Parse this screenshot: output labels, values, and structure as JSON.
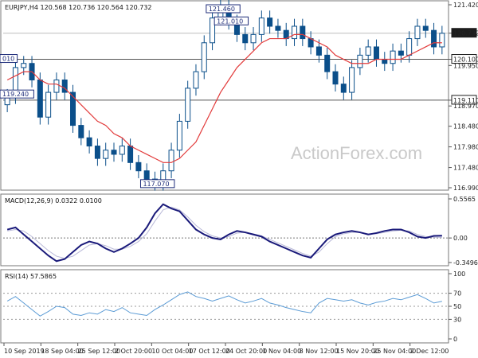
{
  "colors": {
    "candle": "#0b4f8a",
    "ma": "#e23b3b",
    "macd_main": "#1a1a7a",
    "macd_signal": "#b9b9d8",
    "rsi": "#5b9bd5",
    "level_line": "#555555",
    "grid": "#d8d8d8",
    "tag_bg_dark": "#1f2d7a",
    "tag_bg_light": "#ffffff"
  },
  "chart_data": [
    {
      "type": "candlestick",
      "title": "EURJPY,H4  120.568 120.736 120.564 120.732",
      "watermark": "ActionForex.com",
      "ylim": [
        116.99,
        121.42
      ],
      "y_ticks": [
        "121.420",
        "120.732",
        "120.100",
        "119.950",
        "119.110",
        "118.970",
        "118.480",
        "117.980",
        "117.480",
        "116.990"
      ],
      "x_ticks": [
        "10 Sep 2019",
        "18 Sep 04:00",
        "25 Sep 12:00",
        "2 Oct 20:00",
        "10 Oct 04:00",
        "17 Oct 12:00",
        "24 Oct 20:00",
        "1 Nov 04:00",
        "8 Nov 12:00",
        "15 Nov 20:00",
        "25 Nov 04:00",
        "2 Dec 12:00"
      ],
      "current_price": "120.732",
      "levels": [
        {
          "label": "120.100",
          "value": 120.1
        },
        {
          "label": "119.110",
          "value": 119.11
        }
      ],
      "annotations": [
        {
          "label": "121.460",
          "value": 121.46
        },
        {
          "label": "121.010",
          "value": 121.01
        },
        {
          "label": "119.240",
          "value": 119.24
        },
        {
          "label": "117.070",
          "value": 117.07
        },
        {
          "label": "010",
          "value": 120.1
        }
      ],
      "series": [
        {
          "name": "close",
          "values": [
            119.2,
            119.9,
            120.0,
            119.6,
            118.7,
            119.3,
            119.6,
            119.3,
            118.5,
            118.2,
            118.0,
            117.7,
            117.9,
            117.8,
            118.0,
            117.6,
            117.4,
            117.2,
            117.1,
            117.4,
            117.9,
            118.6,
            119.4,
            119.8,
            120.5,
            121.1,
            121.4,
            121.0,
            120.7,
            120.5,
            120.7,
            121.1,
            120.9,
            120.8,
            120.6,
            120.9,
            120.6,
            120.4,
            120.2,
            119.8,
            119.5,
            119.3,
            119.9,
            120.2,
            120.4,
            120.1,
            120.0,
            120.3,
            120.2,
            120.6,
            120.9,
            120.8,
            120.4,
            120.73
          ]
        },
        {
          "name": "ma",
          "values": [
            119.6,
            119.7,
            119.8,
            119.8,
            119.6,
            119.5,
            119.5,
            119.4,
            119.2,
            119.0,
            118.8,
            118.6,
            118.5,
            118.3,
            118.2,
            118.0,
            117.9,
            117.8,
            117.7,
            117.6,
            117.6,
            117.7,
            117.9,
            118.1,
            118.5,
            118.9,
            119.3,
            119.6,
            119.9,
            120.1,
            120.3,
            120.5,
            120.6,
            120.6,
            120.6,
            120.7,
            120.7,
            120.6,
            120.5,
            120.4,
            120.2,
            120.1,
            120.0,
            120.0,
            120.0,
            120.1,
            120.1,
            120.1,
            120.1,
            120.2,
            120.3,
            120.4,
            120.5,
            120.5
          ]
        }
      ]
    },
    {
      "type": "line",
      "title": "MACD(12,26,9) 0.0322 0.0100",
      "ylim": [
        -0.3496,
        0.5565
      ],
      "y_ticks": [
        "0.5565",
        "0.00",
        "-0.3496"
      ],
      "series": [
        {
          "name": "main",
          "values": [
            0.12,
            0.15,
            0.05,
            -0.05,
            -0.15,
            -0.25,
            -0.33,
            -0.3,
            -0.2,
            -0.1,
            -0.05,
            -0.08,
            -0.15,
            -0.2,
            -0.15,
            -0.08,
            0.0,
            0.15,
            0.35,
            0.48,
            0.42,
            0.38,
            0.25,
            0.12,
            0.05,
            0.0,
            -0.02,
            0.05,
            0.1,
            0.08,
            0.05,
            0.02,
            -0.05,
            -0.1,
            -0.15,
            -0.2,
            -0.25,
            -0.28,
            -0.15,
            -0.02,
            0.05,
            0.08,
            0.1,
            0.08,
            0.05,
            0.07,
            0.1,
            0.12,
            0.12,
            0.08,
            0.02,
            0.0,
            0.03,
            0.0322
          ]
        },
        {
          "name": "signal",
          "values": [
            0.1,
            0.12,
            0.1,
            0.02,
            -0.08,
            -0.18,
            -0.26,
            -0.29,
            -0.26,
            -0.18,
            -0.1,
            -0.08,
            -0.11,
            -0.16,
            -0.16,
            -0.12,
            -0.05,
            0.06,
            0.24,
            0.4,
            0.44,
            0.4,
            0.3,
            0.18,
            0.09,
            0.03,
            0.0,
            0.02,
            0.07,
            0.08,
            0.06,
            0.03,
            -0.02,
            -0.07,
            -0.12,
            -0.17,
            -0.22,
            -0.26,
            -0.2,
            -0.08,
            0.02,
            0.06,
            0.08,
            0.08,
            0.06,
            0.06,
            0.08,
            0.1,
            0.11,
            0.1,
            0.05,
            0.02,
            0.01,
            0.01
          ]
        }
      ]
    },
    {
      "type": "line",
      "title": "RSI(14) 57.5865",
      "ylim": [
        0,
        100
      ],
      "y_ticks": [
        "100",
        "70",
        "50",
        "30",
        "0"
      ],
      "series": [
        {
          "name": "rsi",
          "values": [
            58,
            65,
            55,
            45,
            35,
            42,
            50,
            48,
            38,
            36,
            40,
            38,
            45,
            42,
            48,
            40,
            38,
            36,
            45,
            52,
            60,
            68,
            72,
            65,
            62,
            58,
            62,
            66,
            60,
            55,
            58,
            62,
            55,
            52,
            48,
            45,
            42,
            40,
            55,
            62,
            60,
            58,
            60,
            55,
            52,
            56,
            58,
            62,
            60,
            64,
            68,
            62,
            55,
            57.59
          ]
        }
      ]
    }
  ]
}
